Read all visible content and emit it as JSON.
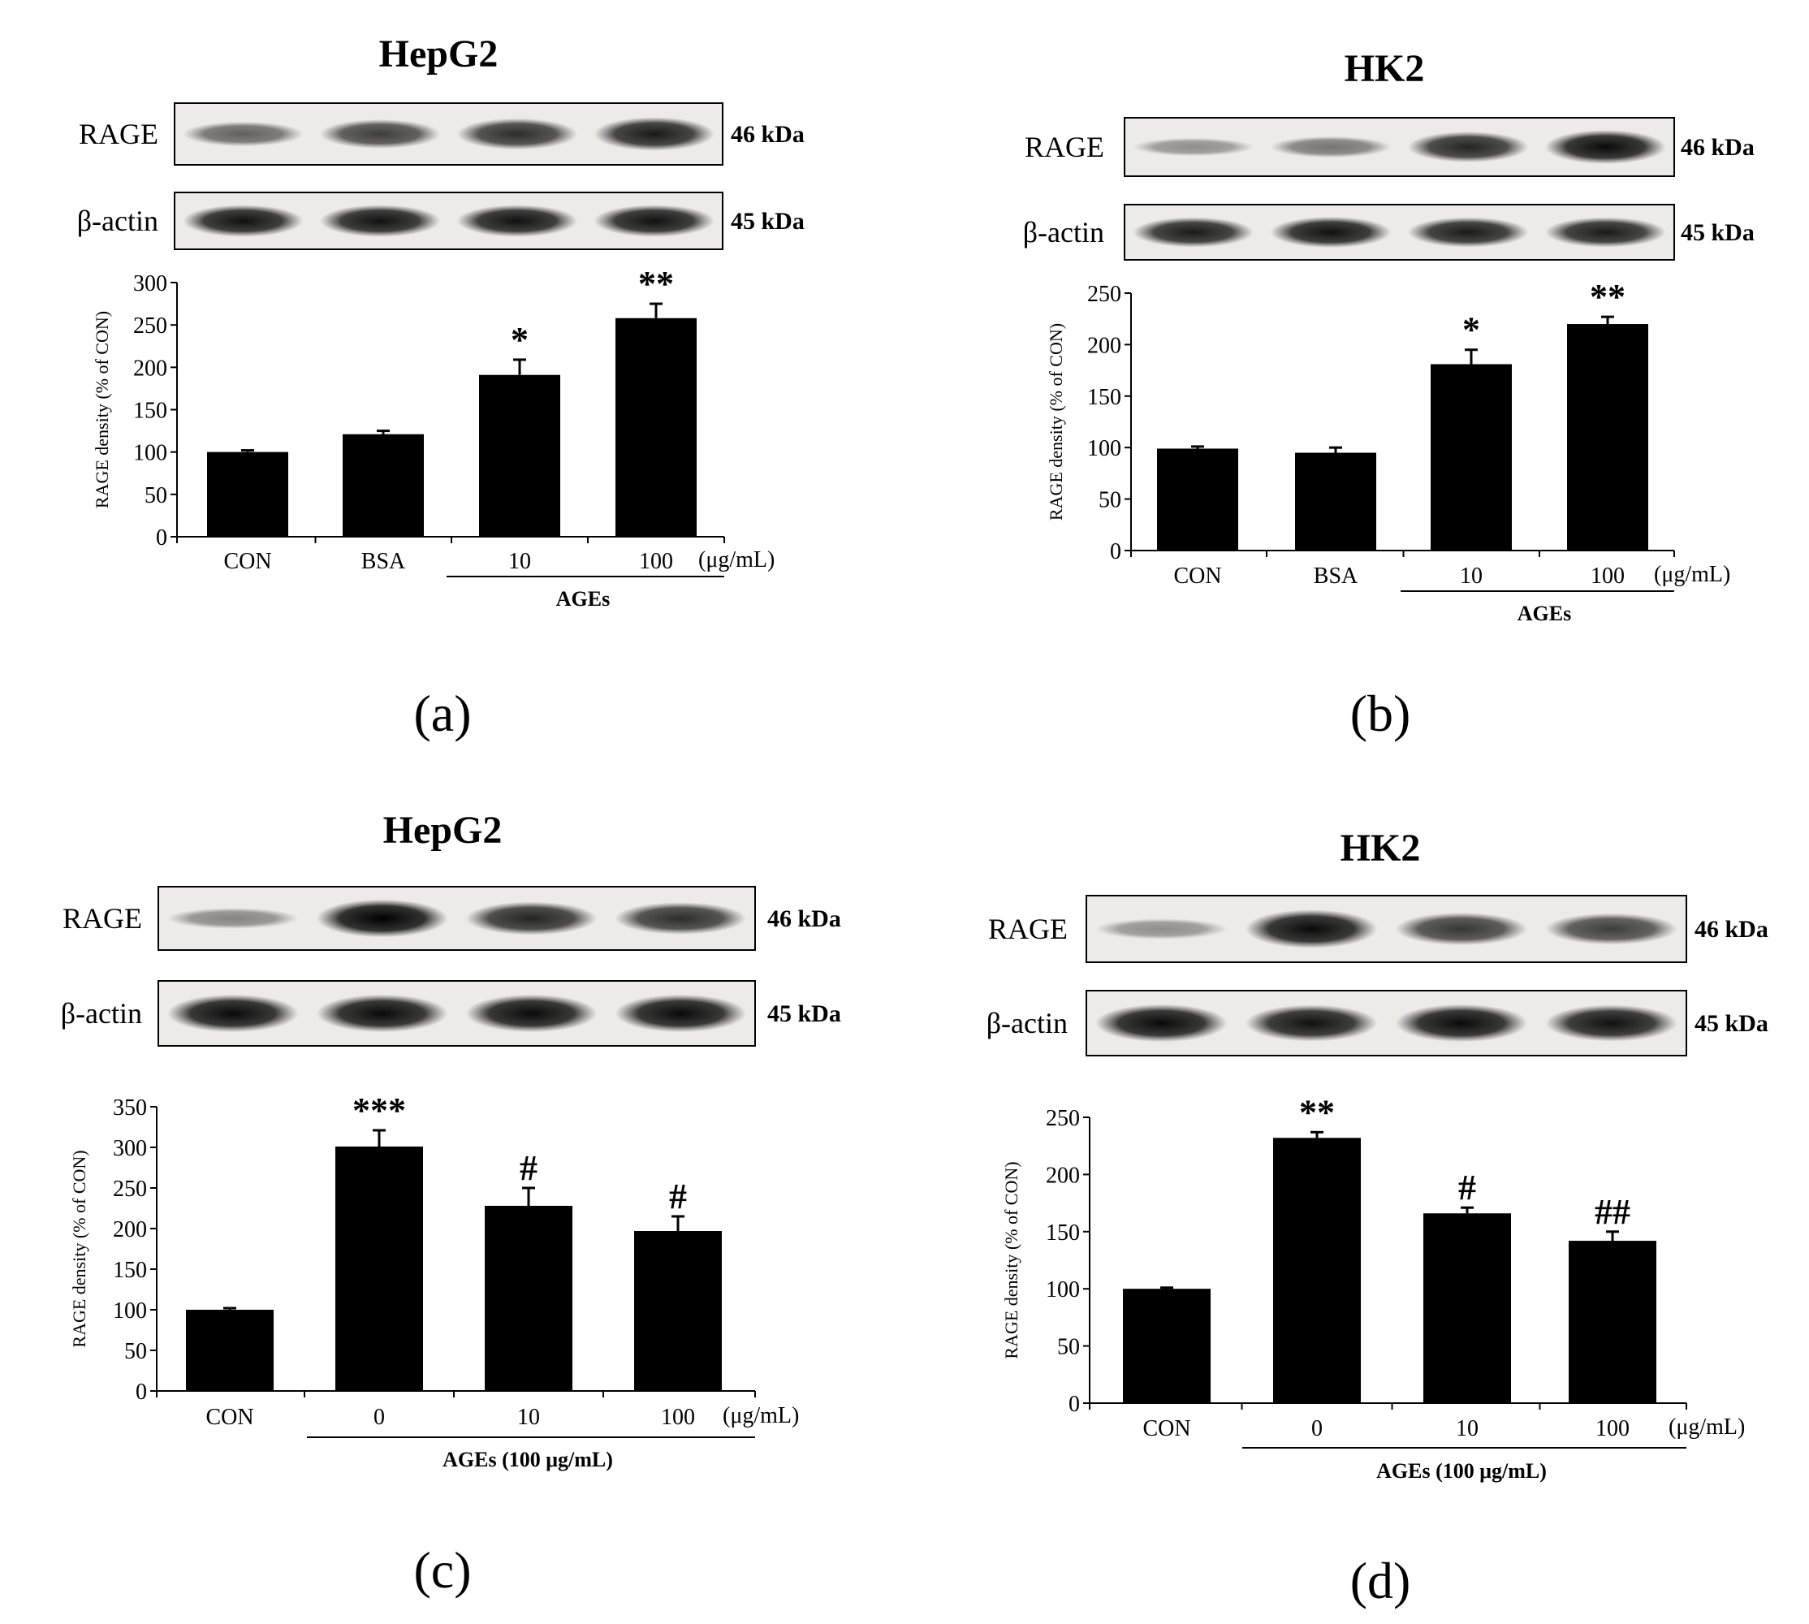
{
  "figure": {
    "panels": [
      {
        "id": "a",
        "panel_label": "(a)",
        "title": "HepG2",
        "blot_rows": [
          {
            "name": "RAGE",
            "kda": "46 kDa"
          },
          {
            "name": "β-actin",
            "kda": "45 kDa"
          }
        ],
        "group_label": "AGEs",
        "unit_label": "(μg/mL)"
      },
      {
        "id": "b",
        "panel_label": "(b)",
        "title": "HK2",
        "blot_rows": [
          {
            "name": "RAGE",
            "kda": "46 kDa"
          },
          {
            "name": "β-actin",
            "kda": "45 kDa"
          }
        ],
        "group_label": "AGEs",
        "unit_label": "(μg/mL)"
      },
      {
        "id": "c",
        "panel_label": "(c)",
        "title": "HepG2",
        "blot_rows": [
          {
            "name": "RAGE",
            "kda": "46 kDa"
          },
          {
            "name": "β-actin",
            "kda": "45 kDa"
          }
        ],
        "group_label": "AGEs (100 μg/mL)",
        "unit_label": "(μg/mL)"
      },
      {
        "id": "d",
        "panel_label": "(d)",
        "title": "HK2",
        "blot_rows": [
          {
            "name": "RAGE",
            "kda": "46 kDa"
          },
          {
            "name": "β-actin",
            "kda": "45 kDa"
          }
        ],
        "group_label": "AGEs (100 μg/mL)",
        "unit_label": "(μg/mL)"
      }
    ]
  },
  "chart_data": [
    {
      "type": "bar",
      "title": "HepG2",
      "categories": [
        "CON",
        "BSA",
        "10",
        "100"
      ],
      "values": [
        100,
        121,
        191,
        258
      ],
      "errors": [
        2,
        4,
        18,
        17
      ],
      "annotations": [
        "",
        "",
        "*",
        "**"
      ],
      "xlabel": "",
      "ylabel": "RAGE density (% of CON)",
      "ylim": [
        0,
        300
      ],
      "yticks": [
        0,
        50,
        100,
        150,
        200,
        250,
        300
      ],
      "bar_color": "#000000",
      "grid": false
    },
    {
      "type": "bar",
      "title": "HK2",
      "categories": [
        "CON",
        "BSA",
        "10",
        "100"
      ],
      "values": [
        99,
        95,
        181,
        220
      ],
      "errors": [
        2,
        5,
        14,
        7
      ],
      "annotations": [
        "",
        "",
        "*",
        "**"
      ],
      "xlabel": "",
      "ylabel": "RAGE density (% of CON)",
      "ylim": [
        0,
        250
      ],
      "yticks": [
        0,
        50,
        100,
        150,
        200,
        250
      ],
      "bar_color": "#000000",
      "grid": false
    },
    {
      "type": "bar",
      "title": "HepG2",
      "categories": [
        "CON",
        "0",
        "10",
        "100"
      ],
      "values": [
        100,
        301,
        228,
        197
      ],
      "errors": [
        2,
        20,
        22,
        18
      ],
      "annotations": [
        "",
        "***",
        "#",
        "#"
      ],
      "xlabel": "",
      "ylabel": "RAGE density (% of CON)",
      "ylim": [
        0,
        350
      ],
      "yticks": [
        0,
        50,
        100,
        150,
        200,
        250,
        300,
        350
      ],
      "bar_color": "#000000",
      "grid": false
    },
    {
      "type": "bar",
      "title": "HK2",
      "categories": [
        "CON",
        "0",
        "10",
        "100"
      ],
      "values": [
        100,
        232,
        166,
        142
      ],
      "errors": [
        1,
        5,
        5,
        8
      ],
      "annotations": [
        "",
        "**",
        "#",
        "##"
      ],
      "xlabel": "",
      "ylabel": "RAGE density (% of CON)",
      "ylim": [
        0,
        250
      ],
      "yticks": [
        0,
        50,
        100,
        150,
        200,
        250
      ],
      "bar_color": "#000000",
      "grid": false
    }
  ]
}
